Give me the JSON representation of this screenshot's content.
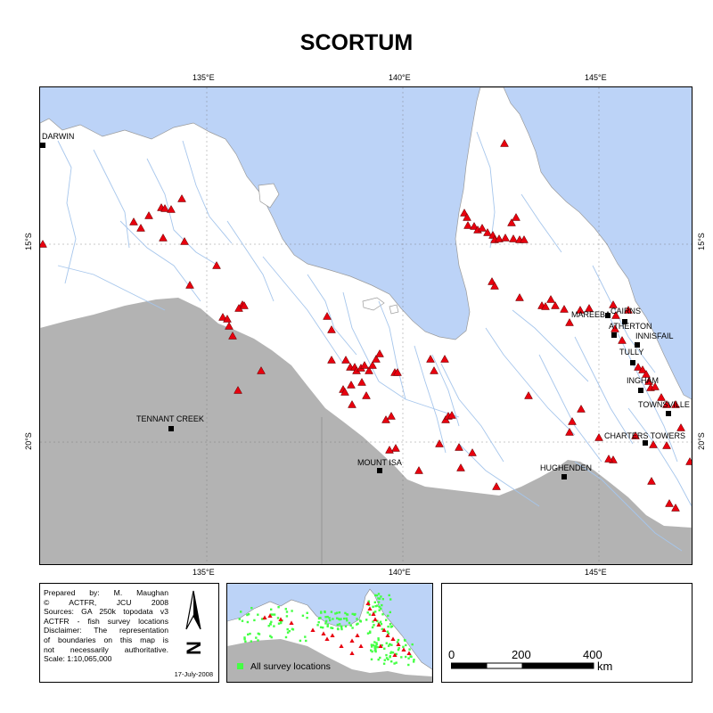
{
  "title": "SCORTUM",
  "graticule": {
    "lon_labels": [
      "135°E",
      "140°E",
      "145°E"
    ],
    "lat_labels": [
      "15°S",
      "20°S"
    ]
  },
  "towns": [
    {
      "name": "DARWIN"
    },
    {
      "name": "TENNANT CREEK"
    },
    {
      "name": "MOUNT ISA"
    },
    {
      "name": "HUGHENDEN"
    },
    {
      "name": "MAREEBA"
    },
    {
      "name": "CAIRNS"
    },
    {
      "name": "ATHERTON"
    },
    {
      "name": "INNISFAIL"
    },
    {
      "name": "TULLY"
    },
    {
      "name": "INGHAM"
    },
    {
      "name": "TOWNSVILLE"
    },
    {
      "name": "CHARTERS TOWERS"
    }
  ],
  "info": {
    "lines": [
      "Prepared by: M. Maughan",
      "© ACTFR, JCU 2008",
      "Sources: GA 250k topodata v3",
      "ACTFR - fish survey locations",
      "Disclaimer: The representation",
      "of boundaries on this map is",
      "not necessarily authoritative.",
      "Scale: 1:10,065,000"
    ],
    "date": "17-July-2008",
    "north_letter": "N"
  },
  "inset": {
    "legend_label": "All survey locations"
  },
  "scale": {
    "labels": [
      "0",
      "200",
      "400"
    ],
    "unit": "km"
  },
  "colors": {
    "sea": "#bcd3f7",
    "land": "#ffffff",
    "outside_region": "#b3b3b3",
    "river": "#a6c6ec",
    "record": "#e8000e",
    "survey": "#44ff44"
  }
}
